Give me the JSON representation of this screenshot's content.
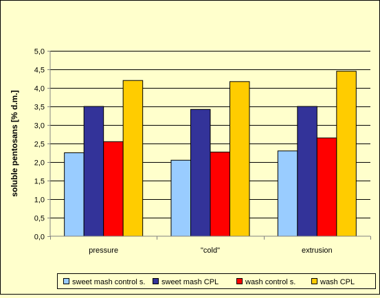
{
  "chart_data": {
    "type": "bar",
    "title": "",
    "xlabel": "",
    "ylabel": "soluble pentosans [% d.m.]",
    "ylim": [
      0,
      5
    ],
    "yticks": [
      "0,0",
      "0,5",
      "1,0",
      "1,5",
      "2,0",
      "2,5",
      "3,0",
      "3,5",
      "4,0",
      "4,5",
      "5,0"
    ],
    "grid": true,
    "legend_position": "bottom-right",
    "categories": [
      "pressure",
      "\"cold\"",
      "extrusion"
    ],
    "series": [
      {
        "name": "sweet mash control s.",
        "color": "#99ccff",
        "values": [
          2.25,
          2.05,
          2.3
        ]
      },
      {
        "name": "sweet mash CPL",
        "color": "#333399",
        "values": [
          3.5,
          3.42,
          3.5
        ]
      },
      {
        "name": "wash control s.",
        "color": "#ff0000",
        "values": [
          2.55,
          2.27,
          2.65
        ]
      },
      {
        "name": "wash CPL",
        "color": "#ffcc00",
        "values": [
          4.2,
          4.17,
          4.45
        ]
      }
    ],
    "colors": {
      "background": "#ffffcc",
      "plot_area": "#ffffcc",
      "grid": "#000000"
    }
  }
}
